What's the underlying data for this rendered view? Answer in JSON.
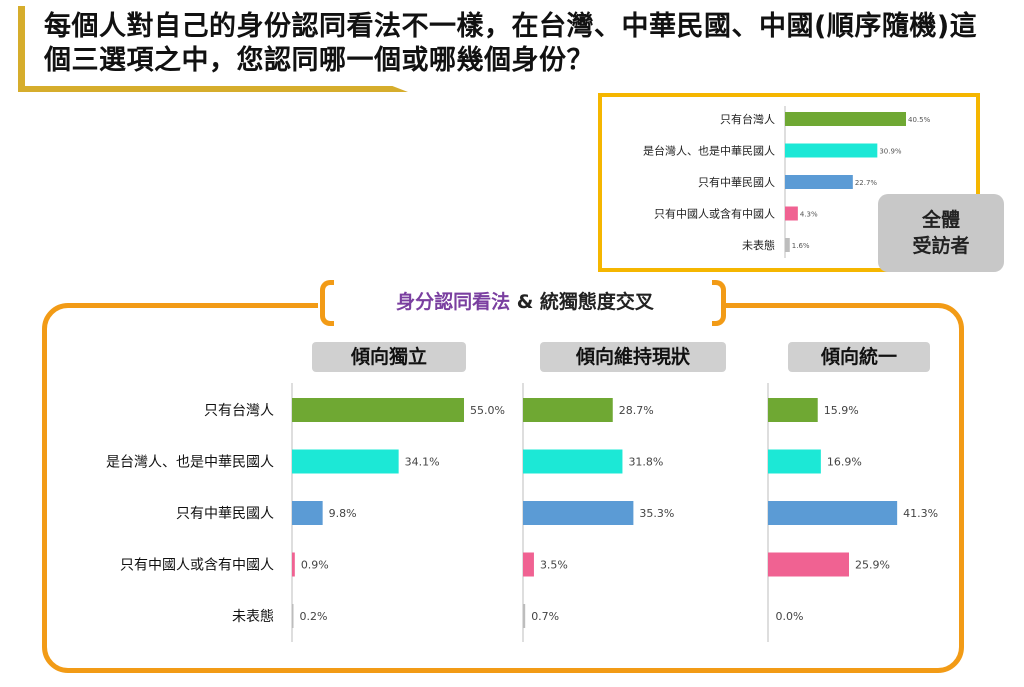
{
  "title": "每個人對自己的身份認同看法不一樣，在台灣、中華民國、中國(順序隨機)這個三選項之中，您認同哪一個或哪幾個身份？",
  "badge": {
    "line1": "全體",
    "line2": "受訪者"
  },
  "section_title": {
    "part1": "身分認同看法",
    "part2": " & 統獨態度交叉"
  },
  "chart_data": [
    {
      "type": "bar",
      "orientation": "horizontal",
      "subtitle": "全體受訪者",
      "categories": [
        "只有台灣人",
        "是台灣人、也是中華民國人",
        "只有中華民國人",
        "只有中國人或含有中國人",
        "未表態"
      ],
      "values": [
        40.5,
        30.9,
        22.7,
        4.3,
        1.6
      ],
      "value_labels": [
        "40.5%",
        "30.9%",
        "22.7%",
        "4.3%",
        "1.6%"
      ],
      "colors": [
        "#6fa833",
        "#1ce8d6",
        "#5b9bd5",
        "#f06292",
        "#bdbdbd"
      ],
      "xlim": [
        0,
        60
      ],
      "grid": false
    },
    {
      "type": "bar",
      "orientation": "horizontal",
      "categories": [
        "只有台灣人",
        "是台灣人、也是中華民國人",
        "只有中華民國人",
        "只有中國人或含有中國人",
        "未表態"
      ],
      "colors": [
        "#6fa833",
        "#1ce8d6",
        "#5b9bd5",
        "#f06292",
        "#bdbdbd"
      ],
      "xlim": [
        0,
        60
      ],
      "grid": false,
      "series": [
        {
          "name": "傾向獨立",
          "values": [
            55.0,
            34.1,
            9.8,
            0.9,
            0.2
          ],
          "value_labels": [
            "55.0%",
            "34.1%",
            "9.8%",
            "0.9%",
            "0.2%"
          ]
        },
        {
          "name": "傾向維持現狀",
          "values": [
            28.7,
            31.8,
            35.3,
            3.5,
            0.7
          ],
          "value_labels": [
            "28.7%",
            "31.8%",
            "35.3%",
            "3.5%",
            "0.7%"
          ]
        },
        {
          "name": "傾向統一",
          "values": [
            15.9,
            16.9,
            41.3,
            25.9,
            0.0
          ],
          "value_labels": [
            "15.9%",
            "16.9%",
            "41.3%",
            "25.9%",
            "0.0%"
          ]
        }
      ]
    }
  ]
}
